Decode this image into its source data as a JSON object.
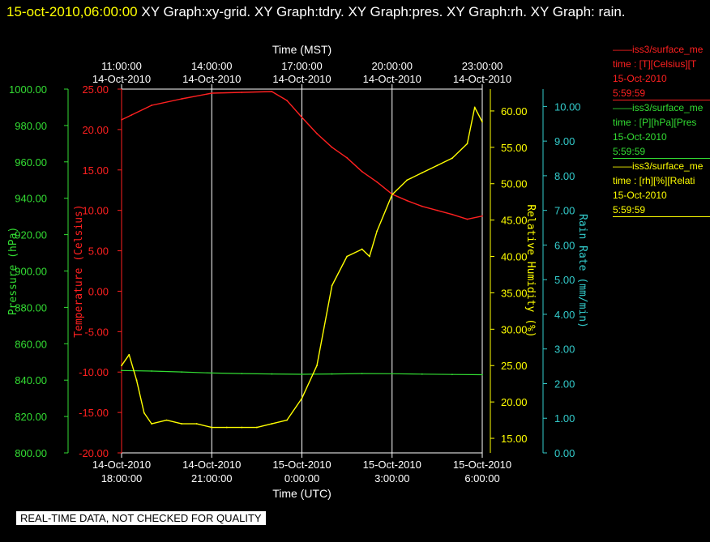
{
  "title": {
    "timestamp": "15-oct-2010,06:00:00",
    "text": "XY Graph:xy-grid.  XY Graph:tdry.  XY Graph:pres.  XY Graph:rh.  XY Graph: rain."
  },
  "legend": [
    {
      "id": "temp",
      "line1": "——iss3/surface_me",
      "line2": "time : [T][Celsius][T",
      "line3": "15-Oct-2010",
      "line4": "5:59:59",
      "color": "#ff2020"
    },
    {
      "id": "pres",
      "line1": "——iss3/surface_me",
      "line2": "time : [P][hPa][Pres",
      "line3": "15-Oct-2010",
      "line4": "5:59:59",
      "color": "#33dd33"
    },
    {
      "id": "rh",
      "line1": "——iss3/surface_me",
      "line2": "time : [rh][%][Relati",
      "line3": "15-Oct-2010",
      "line4": "5:59:59",
      "color": "#ffff00"
    }
  ],
  "qc_note": "REAL-TIME DATA, NOT CHECKED FOR QUALITY",
  "chart_data": {
    "type": "line",
    "grid": true,
    "top_axis": {
      "label": "Time (MST)",
      "ticks": [
        {
          "time": "11:00:00",
          "date": "14-Oct-2010"
        },
        {
          "time": "14:00:00",
          "date": "14-Oct-2010"
        },
        {
          "time": "17:00:00",
          "date": "14-Oct-2010"
        },
        {
          "time": "20:00:00",
          "date": "14-Oct-2010"
        },
        {
          "time": "23:00:00",
          "date": "14-Oct-2010"
        }
      ]
    },
    "bottom_axis": {
      "label": "Time (UTC)",
      "ticks": [
        {
          "date": "14-Oct-2010",
          "time": "18:00:00"
        },
        {
          "date": "14-Oct-2010",
          "time": "21:00:00"
        },
        {
          "date": "15-Oct-2010",
          "time": "0:00:00"
        },
        {
          "date": "15-Oct-2010",
          "time": "3:00:00"
        },
        {
          "date": "15-Oct-2010",
          "time": "6:00:00"
        }
      ],
      "range_utc": [
        "2010-10-14 18:00",
        "2010-10-15 06:00"
      ]
    },
    "y_axes": [
      {
        "id": "pres",
        "label": "Pressure (hPa)",
        "color": "#33dd33",
        "range": [
          800,
          1000
        ],
        "ticks": [
          "800.00",
          "820.00",
          "840.00",
          "860.00",
          "880.00",
          "900.00",
          "920.00",
          "940.00",
          "960.00",
          "980.00",
          "1000.00"
        ]
      },
      {
        "id": "temp",
        "label": "Temperature (Celsius)",
        "color": "#ff2020",
        "range": [
          -20,
          25
        ],
        "ticks": [
          "-20.00",
          "-15.00",
          "-10.00",
          "-5.00",
          "0.00",
          "5.00",
          "10.00",
          "15.00",
          "20.00",
          "25.00"
        ]
      },
      {
        "id": "rh",
        "label": "Relative Humidity (%)",
        "color": "#ffff00",
        "range": [
          13,
          63
        ],
        "ticks": [
          "15.00",
          "20.00",
          "25.00",
          "30.00",
          "35.00",
          "40.00",
          "45.00",
          "50.00",
          "55.00",
          "60.00"
        ]
      },
      {
        "id": "rain",
        "label": "Rain Rate (mm/min)",
        "color": "#33cccc",
        "range": [
          0,
          10.5
        ],
        "ticks": [
          "0.00",
          "1.00",
          "2.00",
          "3.00",
          "4.00",
          "5.00",
          "6.00",
          "7.00",
          "8.00",
          "9.00",
          "10.00"
        ]
      }
    ],
    "series": [
      {
        "id": "temp",
        "color": "#ff2020",
        "x": [
          "2010-10-14 18:00",
          "2010-10-14 18:20",
          "2010-10-14 19:00",
          "2010-10-14 20:00",
          "2010-10-14 21:00",
          "2010-10-14 22:00",
          "2010-10-14 23:00",
          "2010-10-14 23:30",
          "2010-10-15 00:00",
          "2010-10-15 00:30",
          "2010-10-15 01:00",
          "2010-10-15 01:30",
          "2010-10-15 02:00",
          "2010-10-15 02:30",
          "2010-10-15 03:00",
          "2010-10-15 03:30",
          "2010-10-15 04:00",
          "2010-10-15 04:30",
          "2010-10-15 05:00",
          "2010-10-15 05:30",
          "2010-10-15 06:00"
        ],
        "values": [
          21.2,
          21.8,
          23.0,
          23.8,
          24.5,
          24.6,
          24.7,
          23.6,
          21.5,
          19.5,
          17.8,
          16.5,
          14.8,
          13.5,
          12.0,
          11.2,
          10.5,
          10.0,
          9.5,
          8.9,
          9.3
        ]
      },
      {
        "id": "pres",
        "color": "#33dd33",
        "x": [
          "2010-10-14 18:00",
          "2010-10-14 19:00",
          "2010-10-14 20:00",
          "2010-10-14 21:00",
          "2010-10-14 22:00",
          "2010-10-14 23:00",
          "2010-10-15 00:00",
          "2010-10-15 01:00",
          "2010-10-15 02:00",
          "2010-10-15 03:00",
          "2010-10-15 04:00",
          "2010-10-15 05:00",
          "2010-10-15 06:00"
        ],
        "values": [
          845.3,
          845.0,
          844.5,
          843.9,
          843.6,
          843.4,
          843.2,
          843.4,
          843.6,
          843.5,
          843.3,
          843.1,
          843.0
        ]
      },
      {
        "id": "rh",
        "color": "#ffff00",
        "x": [
          "2010-10-14 18:00",
          "2010-10-14 18:15",
          "2010-10-14 18:30",
          "2010-10-14 18:45",
          "2010-10-14 19:00",
          "2010-10-14 19:30",
          "2010-10-14 20:00",
          "2010-10-14 20:30",
          "2010-10-14 21:00",
          "2010-10-14 21:30",
          "2010-10-14 22:00",
          "2010-10-14 22:30",
          "2010-10-14 23:00",
          "2010-10-14 23:30",
          "2010-10-15 00:00",
          "2010-10-15 00:30",
          "2010-10-15 01:00",
          "2010-10-15 01:30",
          "2010-10-15 02:00",
          "2010-10-15 02:15",
          "2010-10-15 02:30",
          "2010-10-15 03:00",
          "2010-10-15 03:30",
          "2010-10-15 04:00",
          "2010-10-15 04:30",
          "2010-10-15 05:00",
          "2010-10-15 05:30",
          "2010-10-15 05:45",
          "2010-10-15 06:00"
        ],
        "values": [
          25.0,
          26.5,
          23.0,
          18.5,
          17.0,
          17.5,
          17.0,
          17.0,
          16.5,
          16.5,
          16.5,
          16.5,
          17.0,
          17.5,
          20.5,
          25.0,
          36.0,
          40.0,
          41.0,
          40.0,
          43.5,
          48.5,
          50.5,
          51.5,
          52.5,
          53.5,
          55.5,
          60.5,
          58.5
        ]
      }
    ]
  }
}
